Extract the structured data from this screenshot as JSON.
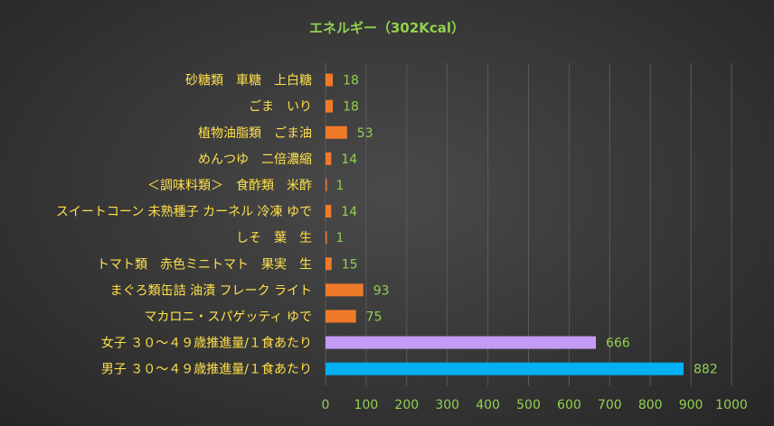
{
  "chart_data": {
    "type": "bar",
    "orientation": "horizontal",
    "title": "エネルギー（302Kcal）",
    "categories": [
      "砂糖類　車糖　上白糖",
      "ごま　いり",
      "植物油脂類　ごま油",
      "めんつゆ　二倍濃縮",
      "＜調味料類＞　食酢類　米酢",
      "スイートコーン 未熟種子 カーネル 冷凍 ゆで",
      "しそ　葉　生",
      "トマト類　赤色ミニトマト　果実　生",
      "まぐろ類缶詰 油漬 フレーク ライト",
      "マカロニ・スパゲッティ ゆで",
      "女子 ３０～４９歳推進量/１食あたり",
      "男子 ３０～４９歳推進量/１食あたり"
    ],
    "values": [
      18,
      18,
      53,
      14,
      1,
      14,
      1,
      15,
      93,
      75,
      666,
      882
    ],
    "bar_colors": [
      "#f07a2a",
      "#f07a2a",
      "#f07a2a",
      "#f07a2a",
      "#f07a2a",
      "#f07a2a",
      "#f07a2a",
      "#f07a2a",
      "#f07a2a",
      "#f07a2a",
      "#c39bf5",
      "#00b0f0"
    ],
    "xlim": [
      0,
      1000
    ],
    "xticks": [
      0,
      100,
      200,
      300,
      400,
      500,
      600,
      700,
      800,
      900,
      1000
    ],
    "grid": "vertical",
    "legend": "none",
    "colors": {
      "title": "#92d050",
      "category_labels": "#ffe04a",
      "value_labels": "#92d050",
      "tick_labels": "#92d050"
    }
  }
}
